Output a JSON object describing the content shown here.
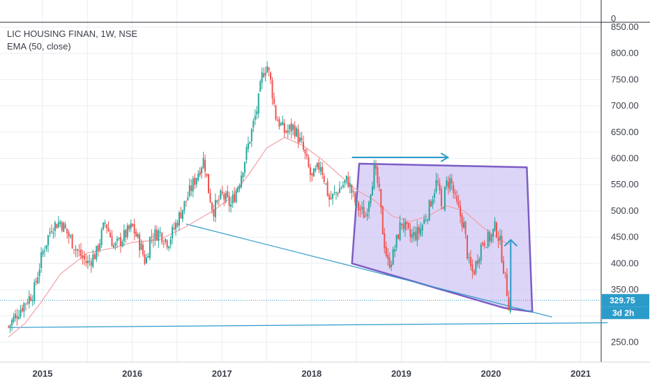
{
  "header": {
    "symbol_line": "LIC HOUSING FINAN, 1W, NSE",
    "indicator": "EMA (50, close)"
  },
  "colors": {
    "up": "#26a69a",
    "down": "#ef5350",
    "ema": "#f2a0a8",
    "trend": "#2b9bc9",
    "box_fill": "#c9bff2",
    "box_stroke": "#7c5cc4",
    "price_tag": "#2b9bc9",
    "grid": "#e9edf3"
  },
  "chart_data": {
    "type": "candlestick",
    "ylim": [
      200,
      860
    ],
    "y_ticks": [
      250,
      300,
      350,
      400,
      450,
      500,
      550,
      600,
      650,
      700,
      750,
      800,
      850
    ],
    "y_tick_labels": [
      "250.00",
      "",
      "350.00",
      "400.00",
      "450.00",
      "500.00",
      "550.00",
      "600.00",
      "650.00",
      "700.00",
      "750.00",
      "800.00",
      "850.00"
    ],
    "top_axis_label": "0",
    "x_ticks": [
      "2015",
      "2016",
      "2017",
      "2018",
      "2019",
      "2020",
      "2021"
    ],
    "x_tick_years": [
      2015,
      2016,
      2017,
      2018,
      2019,
      2020,
      2021
    ],
    "price_path": [
      [
        2014.62,
        280
      ],
      [
        2014.7,
        300
      ],
      [
        2014.8,
        325
      ],
      [
        2014.9,
        345
      ],
      [
        2015.0,
        420
      ],
      [
        2015.1,
        470
      ],
      [
        2015.2,
        480
      ],
      [
        2015.3,
        450
      ],
      [
        2015.4,
        420
      ],
      [
        2015.5,
        400
      ],
      [
        2015.6,
        420
      ],
      [
        2015.7,
        480
      ],
      [
        2015.8,
        430
      ],
      [
        2015.9,
        450
      ],
      [
        2016.0,
        470
      ],
      [
        2016.1,
        430
      ],
      [
        2016.15,
        400
      ],
      [
        2016.2,
        450
      ],
      [
        2016.3,
        460
      ],
      [
        2016.4,
        440
      ],
      [
        2016.5,
        480
      ],
      [
        2016.6,
        520
      ],
      [
        2016.7,
        560
      ],
      [
        2016.8,
        600
      ],
      [
        2016.85,
        540
      ],
      [
        2016.9,
        500
      ],
      [
        2017.0,
        530
      ],
      [
        2017.1,
        510
      ],
      [
        2017.2,
        560
      ],
      [
        2017.3,
        630
      ],
      [
        2017.4,
        700
      ],
      [
        2017.45,
        760
      ],
      [
        2017.5,
        780
      ],
      [
        2017.55,
        740
      ],
      [
        2017.6,
        680
      ],
      [
        2017.7,
        650
      ],
      [
        2017.8,
        660
      ],
      [
        2017.9,
        620
      ],
      [
        2018.0,
        560
      ],
      [
        2018.1,
        590
      ],
      [
        2018.2,
        520
      ],
      [
        2018.3,
        540
      ],
      [
        2018.4,
        560
      ],
      [
        2018.5,
        510
      ],
      [
        2018.6,
        490
      ],
      [
        2018.7,
        580
      ],
      [
        2018.75,
        540
      ],
      [
        2018.8,
        450
      ],
      [
        2018.85,
        400
      ],
      [
        2018.9,
        410
      ],
      [
        2019.0,
        480
      ],
      [
        2019.1,
        450
      ],
      [
        2019.2,
        460
      ],
      [
        2019.3,
        500
      ],
      [
        2019.4,
        560
      ],
      [
        2019.45,
        500
      ],
      [
        2019.5,
        550
      ],
      [
        2019.55,
        560
      ],
      [
        2019.6,
        520
      ],
      [
        2019.7,
        470
      ],
      [
        2019.75,
        400
      ],
      [
        2019.8,
        380
      ],
      [
        2019.9,
        440
      ],
      [
        2020.0,
        450
      ],
      [
        2020.05,
        470
      ],
      [
        2020.1,
        440
      ],
      [
        2020.15,
        380
      ],
      [
        2020.2,
        320
      ],
      [
        2020.22,
        329.75
      ]
    ],
    "ema_path": [
      [
        2014.62,
        260
      ],
      [
        2014.8,
        285
      ],
      [
        2015.0,
        330
      ],
      [
        2015.2,
        380
      ],
      [
        2015.5,
        420
      ],
      [
        2015.8,
        430
      ],
      [
        2016.0,
        440
      ],
      [
        2016.3,
        445
      ],
      [
        2016.6,
        470
      ],
      [
        2016.9,
        500
      ],
      [
        2017.1,
        525
      ],
      [
        2017.3,
        570
      ],
      [
        2017.5,
        620
      ],
      [
        2017.7,
        640
      ],
      [
        2017.9,
        625
      ],
      [
        2018.1,
        600
      ],
      [
        2018.3,
        570
      ],
      [
        2018.5,
        540
      ],
      [
        2018.7,
        520
      ],
      [
        2018.9,
        490
      ],
      [
        2019.1,
        480
      ],
      [
        2019.3,
        490
      ],
      [
        2019.5,
        510
      ],
      [
        2019.7,
        500
      ],
      [
        2019.9,
        470
      ],
      [
        2020.1,
        445
      ],
      [
        2020.22,
        435
      ]
    ],
    "last_price": "329.75",
    "countdown": "3d 2h",
    "drawings": {
      "trendline_upper": [
        [
          2016.6,
          475
        ],
        [
          2020.68,
          298
        ]
      ],
      "trendline_lower": [
        [
          2014.62,
          278
        ],
        [
          2021.3,
          287
        ]
      ],
      "box": [
        [
          2018.45,
          400
        ],
        [
          2018.53,
          590
        ],
        [
          2020.4,
          583
        ],
        [
          2020.46,
          308
        ],
        [
          2020.15,
          315
        ]
      ],
      "arrow_right": [
        [
          2018.45,
          602
        ],
        [
          2019.52,
          602
        ]
      ],
      "arrow_up": [
        [
          2020.22,
          315
        ],
        [
          2020.22,
          445
        ]
      ]
    }
  }
}
